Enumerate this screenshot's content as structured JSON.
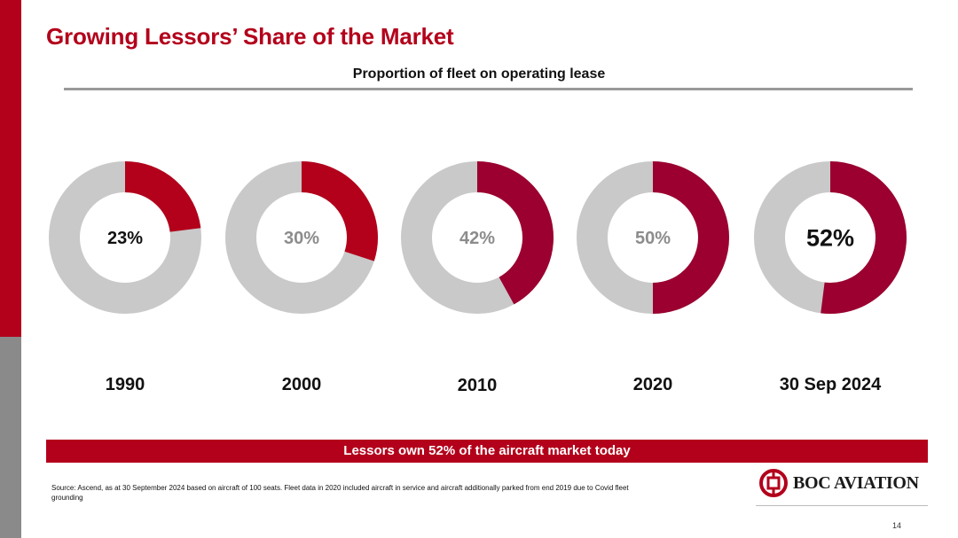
{
  "title": "Growing Lessors’ Share of the Market",
  "chart_data": {
    "type": "pie",
    "title": "Proportion of fleet on operating lease",
    "categories": [
      "1990",
      "2000",
      "2010",
      "2020",
      "30 Sep 2024"
    ],
    "values": [
      23,
      30,
      42,
      50,
      52
    ],
    "labels": [
      "23%",
      "30%",
      "42%",
      "50%",
      "52%"
    ],
    "colors": {
      "share": "#b3001b",
      "share_late": "#9b0030",
      "remainder": "#c9c9c9"
    }
  },
  "banner": "Lessors own 52% of the aircraft market today",
  "source": "Source: Ascend, as at 30 September 2024 based on aircraft of 100 seats. Fleet data in 2020 included aircraft in service and aircraft additionally parked from end 2019 due to Covid fleet grounding",
  "logo": {
    "text": "BOC AVIATION",
    "icon": "boc-logo-icon"
  },
  "page_number": "14"
}
